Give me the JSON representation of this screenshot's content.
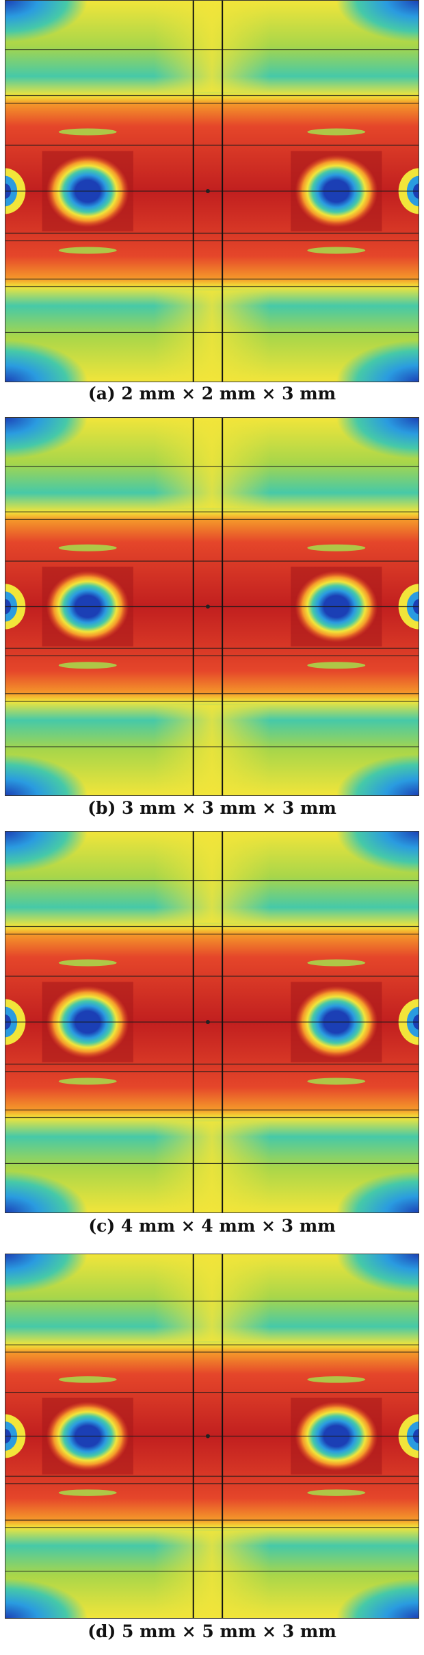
{
  "panels": [
    {
      "id": "a",
      "caption": "(a) 2 mm × 2 mm × 3 mm",
      "element_size_mm": [
        2,
        2,
        3
      ]
    },
    {
      "id": "b",
      "caption": "(b) 3 mm × 3 mm × 3 mm",
      "element_size_mm": [
        3,
        3,
        3
      ]
    },
    {
      "id": "c",
      "caption": "(c) 4 mm × 4 mm × 3 mm",
      "element_size_mm": [
        4,
        4,
        3
      ]
    },
    {
      "id": "d",
      "caption": "(d) 5 mm × 5 mm × 3 mm",
      "element_size_mm": [
        5,
        5,
        3
      ]
    }
  ],
  "colormap": [
    "#1b3fb5",
    "#2a9be0",
    "#46c9a8",
    "#a8d64a",
    "#f2e53a",
    "#f59a2a",
    "#e5462a",
    "#c11f1f"
  ]
}
